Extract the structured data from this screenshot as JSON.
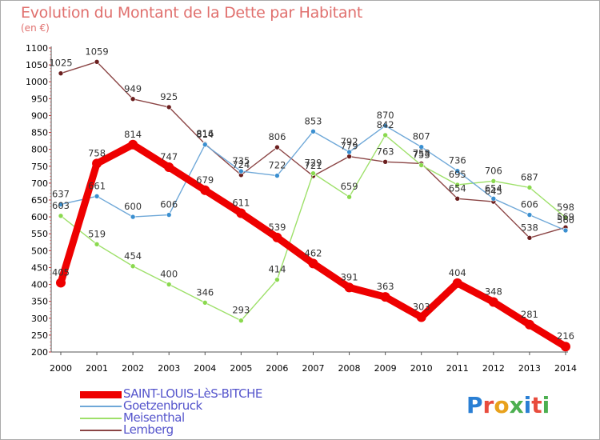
{
  "header": {
    "title": "Evolution du Montant de la Dette par Habitant",
    "subtitle": "(en €)"
  },
  "logo": {
    "text": "Proxiti",
    "colors": [
      "#2a7fd4",
      "#e84c3d",
      "#e8a11c",
      "#4caf50",
      "#2a7fd4",
      "#e84c3d",
      "#4caf50"
    ]
  },
  "chart_data": {
    "type": "line",
    "title": "Evolution du Montant de la Dette par Habitant",
    "subtitle": "(en €)",
    "xlabel": "",
    "ylabel": "",
    "categories": [
      "2000",
      "2001",
      "2002",
      "2003",
      "2004",
      "2005",
      "2006",
      "2007",
      "2008",
      "2009",
      "2010",
      "2011",
      "2012",
      "2013",
      "2014"
    ],
    "ylim": [
      200,
      1100
    ],
    "yticks": [
      200,
      250,
      300,
      350,
      400,
      450,
      500,
      550,
      600,
      650,
      700,
      750,
      800,
      850,
      900,
      950,
      1000,
      1050,
      1100
    ],
    "grid": false,
    "legend_position": "bottom-left",
    "series": [
      {
        "name": "SAINT-LOUIS-LèS-BITCHE",
        "color": "#ee0000",
        "dot": "#ee0000",
        "values": [
          405,
          758,
          814,
          747,
          679,
          611,
          539,
          462,
          391,
          363,
          303,
          404,
          348,
          281,
          216
        ]
      },
      {
        "name": "Goetzenbruck",
        "color": "#6fa8d8",
        "dot": "#3a8fd0",
        "values": [
          637,
          661,
          600,
          606,
          814,
          735,
          722,
          853,
          792,
          870,
          807,
          736,
          654,
          606,
          560
        ]
      },
      {
        "name": "Meisenthal",
        "color": "#9ee06a",
        "dot": "#8ad94e",
        "values": [
          603,
          519,
          454,
          400,
          346,
          293,
          414,
          729,
          659,
          842,
          753,
          695,
          706,
          687,
          598
        ]
      },
      {
        "name": "Lemberg",
        "color": "#8b4545",
        "dot": "#6b1f1f",
        "values": [
          1025,
          1059,
          949,
          925,
          816,
          724,
          806,
          721,
          779,
          763,
          758,
          654,
          645,
          538,
          569
        ]
      }
    ]
  }
}
